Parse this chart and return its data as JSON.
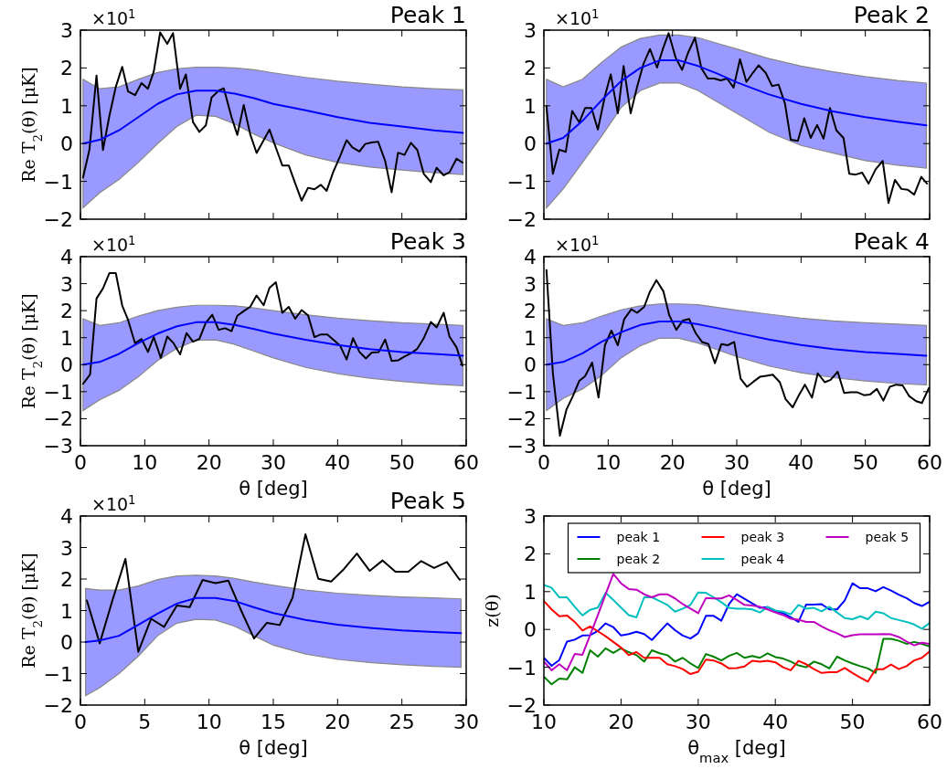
{
  "chart_data": [
    {
      "type": "line",
      "title": "Peak 1",
      "ylabel": "Re T$_{2}$(θ) [μK]",
      "annotations": [
        "×10$^{1}$"
      ],
      "xlim": [
        0,
        60
      ],
      "xticks": [
        0,
        10,
        20,
        30,
        40,
        50,
        60
      ],
      "ylim": [
        -2,
        3
      ],
      "yticks": [
        -2,
        -1,
        0,
        1,
        2,
        3
      ],
      "tick_labels": "y",
      "series": [
        {
          "color": "#000000",
          "x": [
            0.4,
            1.4,
            2.5,
            3.5,
            4.5,
            5.5,
            6.5,
            7.4,
            8.5,
            9.5,
            10.5,
            11.4,
            12.4,
            13.5,
            14.4,
            15.5,
            16.4,
            17.5,
            18.5,
            19.5,
            20.4,
            21.5,
            22.3,
            23.5,
            24.4,
            25.4,
            26.4,
            27.4,
            28.5,
            29.4,
            30.4,
            31.4,
            32.4,
            33.4,
            34.4,
            35.4,
            36.4,
            37.4,
            38.3,
            39.3,
            40.4,
            41.4,
            42.3,
            43.4,
            44.3,
            45.3,
            46.3,
            47.4,
            48.4,
            49.4,
            50.4,
            51.4,
            52.4,
            53.4,
            54.5,
            55.4,
            56.5,
            57.4,
            58.5,
            59.4
          ],
          "values": [
            -0.9,
            -0.16,
            1.8,
            -0.17,
            0.73,
            1.5,
            2.03,
            1.38,
            1.28,
            1.6,
            1.45,
            1.9,
            2.94,
            2.64,
            2.92,
            1.45,
            1.83,
            0.57,
            0.31,
            0.48,
            1.22,
            1.4,
            1.46,
            0.7,
            0.23,
            1.02,
            0.25,
            -0.25,
            0.09,
            0.37,
            -0.11,
            -0.58,
            -0.58,
            -1.05,
            -1.51,
            -1.17,
            -1.21,
            -1.09,
            -1.25,
            -0.76,
            -0.33,
            0.09,
            -0.1,
            -0.21,
            -0.01,
            0.03,
            0.05,
            -0.46,
            -1.29,
            -0.24,
            -0.3,
            0.02,
            -0.17,
            -0.8,
            -1.02,
            -0.64,
            -0.84,
            -0.76,
            -0.4,
            -0.5
          ]
        },
        {
          "color": "#0000ff",
          "x": [
            0.4,
            3,
            6,
            9,
            12,
            15,
            18,
            21,
            24,
            27,
            30,
            35,
            40,
            45,
            50,
            55,
            59.5
          ],
          "values": [
            0,
            0.1,
            0.35,
            0.7,
            1.05,
            1.3,
            1.4,
            1.4,
            1.32,
            1.2,
            1.05,
            0.88,
            0.7,
            0.55,
            0.45,
            0.35,
            0.28
          ],
          "upper": [
            1.7,
            1.45,
            1.5,
            1.7,
            1.88,
            1.98,
            2.02,
            2.02,
            2.0,
            1.95,
            1.87,
            1.75,
            1.65,
            1.57,
            1.5,
            1.45,
            1.42
          ],
          "lower": [
            -1.7,
            -1.3,
            -0.95,
            -0.5,
            0.0,
            0.45,
            0.75,
            0.72,
            0.52,
            0.25,
            0.02,
            -0.3,
            -0.5,
            -0.62,
            -0.7,
            -0.77,
            -0.82
          ]
        }
      ]
    },
    {
      "type": "line",
      "title": "Peak 2",
      "annotations": [
        "×10$^{1}$"
      ],
      "xlim": [
        0,
        60
      ],
      "xticks": [
        0,
        10,
        20,
        30,
        40,
        50,
        60
      ],
      "ylim": [
        -2,
        3
      ],
      "yticks": [
        -2,
        -1,
        0,
        1,
        2,
        3
      ],
      "tick_labels": "y",
      "series": [
        {
          "color": "#000000",
          "x": [
            0.4,
            1.4,
            2.4,
            3.4,
            4.4,
            5.5,
            6.4,
            7.4,
            8.4,
            9.5,
            10.4,
            11.5,
            12.4,
            13.5,
            14.5,
            15.5,
            16.5,
            17.6,
            18.5,
            19.4,
            20.5,
            21.5,
            22.4,
            23.5,
            24.5,
            25.5,
            26.5,
            27.5,
            28.5,
            29.5,
            30.5,
            31.5,
            32.5,
            33.4,
            34.5,
            35.5,
            36.5,
            37.5,
            38.4,
            39.5,
            40.5,
            41.5,
            42.5,
            43.5,
            44.5,
            45.5,
            46.6,
            47.5,
            48.5,
            49.5,
            50.5,
            51.6,
            52.7,
            53.6,
            54.6,
            55.6,
            56.6,
            57.6,
            58.7,
            59.6
          ],
          "values": [
            0.98,
            -0.8,
            -0.16,
            -0.22,
            0.86,
            0.56,
            0.94,
            0.94,
            0.37,
            1.26,
            1.83,
            0.8,
            2.05,
            0.8,
            1.5,
            2.11,
            2.5,
            2.01,
            2.5,
            2.92,
            2.27,
            1.95,
            2.39,
            2.8,
            1.99,
            1.72,
            1.72,
            1.67,
            1.72,
            1.48,
            2.23,
            1.63,
            1.87,
            2.07,
            1.87,
            1.52,
            1.56,
            1.06,
            0.1,
            0.07,
            0.67,
            0.15,
            0.49,
            0.13,
            0.94,
            0.35,
            0.15,
            -0.8,
            -0.82,
            -0.77,
            -1.06,
            -0.68,
            -0.46,
            -1.57,
            -0.96,
            -1.2,
            -1.22,
            -1.35,
            -0.88,
            -1.06
          ]
        },
        {
          "color": "#0000ff",
          "x": [
            0.4,
            3,
            6,
            9,
            12,
            15,
            18,
            21,
            24,
            27,
            30,
            35,
            40,
            45,
            50,
            55,
            59.5
          ],
          "values": [
            0,
            0.15,
            0.6,
            1.15,
            1.65,
            2.0,
            2.2,
            2.2,
            2.05,
            1.85,
            1.62,
            1.3,
            1.05,
            0.85,
            0.7,
            0.58,
            0.48
          ],
          "upper": [
            1.7,
            1.5,
            1.7,
            2.15,
            2.55,
            2.78,
            2.87,
            2.87,
            2.8,
            2.65,
            2.5,
            2.25,
            2.05,
            1.9,
            1.77,
            1.67,
            1.6
          ],
          "lower": [
            -1.7,
            -1.2,
            -0.5,
            0.2,
            0.95,
            1.4,
            1.6,
            1.6,
            1.4,
            1.1,
            0.8,
            0.3,
            -0.05,
            -0.25,
            -0.45,
            -0.57,
            -0.65
          ]
        }
      ]
    },
    {
      "type": "line",
      "title": "Peak 3",
      "xlabel": "θ [deg]",
      "ylabel": "Re T$_{2}$(θ) [μK]",
      "annotations": [
        "×10$^{1}$"
      ],
      "xlim": [
        0,
        60
      ],
      "xticks": [
        0,
        10,
        20,
        30,
        40,
        50,
        60
      ],
      "ylim": [
        -3,
        4
      ],
      "yticks": [
        -3,
        -2,
        -1,
        0,
        1,
        2,
        3,
        4
      ],
      "series": [
        {
          "color": "#000000",
          "x": [
            0.4,
            1.5,
            2.5,
            3.5,
            4.5,
            5.5,
            6.5,
            7.4,
            8.5,
            9.5,
            10.5,
            11.4,
            12.5,
            13.5,
            14.5,
            15.5,
            16.5,
            17.5,
            18.5,
            19.5,
            20.5,
            21.5,
            22.5,
            23.5,
            24.4,
            25.5,
            26.4,
            27.4,
            28.5,
            29.4,
            30.4,
            31.4,
            32.4,
            33.4,
            34.4,
            35.4,
            36.4,
            37.4,
            38.4,
            39.3,
            40.4,
            41.4,
            42.4,
            43.4,
            44.4,
            45.3,
            46.4,
            47.4,
            48.4,
            49.4,
            50.4,
            51.4,
            52.4,
            53.4,
            54.5,
            55.4,
            56.5,
            57.4,
            58.5,
            59.4
          ],
          "values": [
            -0.71,
            -0.37,
            2.45,
            2.82,
            3.39,
            3.39,
            2.19,
            1.66,
            0.79,
            0.95,
            0.47,
            1.02,
            0.25,
            1.04,
            0.79,
            0.38,
            1.17,
            0.85,
            0.95,
            1.55,
            1.85,
            1.29,
            1.35,
            1.24,
            1.81,
            2.0,
            2.14,
            2.56,
            2.2,
            2.84,
            3.05,
            1.92,
            2.14,
            1.7,
            2.02,
            1.83,
            1.02,
            1.12,
            1.12,
            0.93,
            0.7,
            0.19,
            0.98,
            0.47,
            0.23,
            0.45,
            0.47,
            0.93,
            0.14,
            0.16,
            0.3,
            0.42,
            0.59,
            0.98,
            1.58,
            1.38,
            1.92,
            1.04,
            0.64,
            -0.03
          ]
        },
        {
          "color": "#0000ff",
          "x": [
            0.4,
            3,
            6,
            9,
            12,
            15,
            18,
            21,
            24,
            27,
            30,
            35,
            40,
            45,
            50,
            55,
            59.5
          ],
          "values": [
            0,
            0.1,
            0.4,
            0.8,
            1.15,
            1.42,
            1.57,
            1.57,
            1.47,
            1.32,
            1.15,
            0.92,
            0.73,
            0.58,
            0.47,
            0.4,
            0.33
          ],
          "upper": [
            1.7,
            1.45,
            1.55,
            1.8,
            2.0,
            2.13,
            2.2,
            2.2,
            2.18,
            2.1,
            2.0,
            1.85,
            1.72,
            1.63,
            1.55,
            1.5,
            1.45
          ],
          "lower": [
            -1.7,
            -1.3,
            -0.95,
            -0.45,
            0.15,
            0.6,
            0.9,
            0.92,
            0.75,
            0.5,
            0.25,
            -0.1,
            -0.33,
            -0.5,
            -0.62,
            -0.72,
            -0.78
          ]
        }
      ]
    },
    {
      "type": "line",
      "title": "Peak 4",
      "xlabel": "θ [deg]",
      "annotations": [
        "×10$^{1}$"
      ],
      "xlim": [
        0,
        60
      ],
      "xticks": [
        0,
        10,
        20,
        30,
        40,
        50,
        60
      ],
      "ylim": [
        -3,
        4
      ],
      "yticks": [
        -3,
        -2,
        -1,
        0,
        1,
        2,
        3,
        4
      ],
      "series": [
        {
          "color": "#000000",
          "x": [
            0.4,
            1.4,
            2.5,
            3.5,
            4.5,
            5.5,
            6.4,
            7.5,
            8.5,
            9.5,
            10.5,
            11.5,
            12.5,
            13.6,
            14.5,
            15.6,
            16.5,
            17.5,
            18.6,
            19.5,
            20.6,
            21.6,
            22.6,
            23.6,
            24.6,
            25.6,
            26.6,
            27.6,
            28.6,
            29.6,
            30.6,
            31.6,
            32.6,
            33.6,
            34.6,
            35.6,
            36.7,
            37.6,
            38.7,
            39.6,
            40.6,
            41.7,
            42.6,
            43.7,
            44.6,
            45.7,
            46.7,
            47.7,
            48.7,
            49.8,
            50.7,
            51.8,
            52.8,
            53.8,
            54.8,
            55.8,
            56.8,
            57.9,
            58.8,
            59.9
          ],
          "values": [
            3.5,
            -0.32,
            -2.63,
            -1.67,
            -1.17,
            -0.6,
            -0.43,
            0.08,
            -1.22,
            0.72,
            1.26,
            0.72,
            1.69,
            2.05,
            1.92,
            2.14,
            2.71,
            3.13,
            2.71,
            1.83,
            1.29,
            1.63,
            1.69,
            1.17,
            0.84,
            0.76,
            0.05,
            0.76,
            0.72,
            0.84,
            -0.52,
            -0.82,
            -0.63,
            -0.45,
            -0.41,
            -0.37,
            -0.65,
            -1.28,
            -1.58,
            -1.16,
            -0.74,
            -1.22,
            -0.32,
            -0.65,
            -0.56,
            -0.26,
            -1.05,
            -1.02,
            -1.02,
            -1.13,
            -1.11,
            -0.9,
            -1.33,
            -0.82,
            -0.74,
            -0.77,
            -1.16,
            -1.35,
            -1.42,
            -0.86
          ]
        },
        {
          "color": "#0000ff",
          "x": [
            0.4,
            3,
            6,
            9,
            12,
            15,
            18,
            21,
            24,
            27,
            30,
            35,
            40,
            45,
            50,
            55,
            59.5
          ],
          "values": [
            0,
            0.1,
            0.42,
            0.85,
            1.2,
            1.47,
            1.6,
            1.6,
            1.5,
            1.35,
            1.18,
            0.93,
            0.73,
            0.58,
            0.47,
            0.4,
            0.33
          ],
          "upper": [
            1.7,
            1.45,
            1.55,
            1.8,
            2.03,
            2.18,
            2.25,
            2.25,
            2.22,
            2.12,
            2.02,
            1.87,
            1.72,
            1.62,
            1.55,
            1.5,
            1.45
          ],
          "lower": [
            -1.7,
            -1.25,
            -0.9,
            -0.4,
            0.25,
            0.7,
            0.98,
            0.98,
            0.8,
            0.55,
            0.3,
            -0.05,
            -0.3,
            -0.48,
            -0.6,
            -0.7,
            -0.75
          ]
        }
      ]
    },
    {
      "type": "line",
      "title": "Peak 5",
      "xlabel": "θ [deg]",
      "ylabel": "Re T$_{2}$(θ) [μK]",
      "annotations": [
        "×10$^{1}$"
      ],
      "xlim": [
        0,
        30
      ],
      "xticks": [
        0,
        5,
        10,
        15,
        20,
        25,
        30
      ],
      "ylim": [
        -2,
        4
      ],
      "yticks": [
        -2,
        -1,
        0,
        1,
        2,
        3,
        4
      ],
      "series": [
        {
          "color": "#000000",
          "x": [
            0.5,
            1.5,
            2.5,
            3.5,
            4.5,
            5.5,
            6.5,
            7.5,
            8.5,
            9.5,
            10.5,
            11.5,
            12.5,
            13.5,
            14.5,
            15.5,
            16.5,
            17.5,
            18.5,
            19.5,
            20.5,
            21.5,
            22.5,
            23.5,
            24.5,
            25.5,
            26.5,
            27.5,
            28.5,
            29.5
          ],
          "values": [
            1.32,
            -0.04,
            1.34,
            2.64,
            -0.31,
            0.74,
            0.48,
            1.16,
            1.11,
            1.97,
            1.87,
            1.95,
            1.0,
            0.11,
            0.61,
            0.54,
            1.41,
            3.42,
            2.01,
            1.92,
            2.32,
            2.81,
            2.26,
            2.59,
            2.23,
            2.23,
            2.57,
            2.35,
            2.54,
            1.97
          ]
        },
        {
          "color": "#0000ff",
          "x": [
            0.4,
            1.5,
            3,
            4.5,
            6,
            7.5,
            9,
            10.5,
            12,
            13.5,
            15,
            17.5,
            20,
            22.5,
            25,
            27.5,
            29.6
          ],
          "values": [
            0,
            0.05,
            0.2,
            0.55,
            0.9,
            1.22,
            1.4,
            1.4,
            1.3,
            1.1,
            0.92,
            0.7,
            0.55,
            0.45,
            0.37,
            0.32,
            0.28
          ],
          "upper": [
            1.7,
            1.65,
            1.65,
            1.78,
            1.98,
            2.1,
            2.12,
            2.1,
            2.02,
            1.9,
            1.8,
            1.65,
            1.55,
            1.48,
            1.43,
            1.4,
            1.37
          ],
          "lower": [
            -1.7,
            -1.45,
            -1.0,
            -0.45,
            0.2,
            0.6,
            0.72,
            0.7,
            0.5,
            0.2,
            -0.1,
            -0.38,
            -0.55,
            -0.65,
            -0.72,
            -0.77,
            -0.8
          ]
        }
      ]
    },
    {
      "type": "line",
      "xlabel": "θ$_{max}$ [deg]",
      "ylabel": "z(θ)",
      "xlim": [
        10,
        60
      ],
      "xticks": [
        10,
        20,
        30,
        40,
        50,
        60
      ],
      "ylim": [
        -2,
        3
      ],
      "yticks": [
        -2,
        -1,
        0,
        1,
        2,
        3
      ],
      "legend": "top",
      "x": [
        10,
        11,
        12,
        13,
        14,
        15,
        16,
        17,
        18,
        19,
        20,
        21,
        22,
        23,
        24,
        25,
        26,
        27,
        28,
        29,
        30,
        31,
        32,
        33,
        34,
        35,
        36,
        37,
        38,
        39,
        40,
        41,
        42,
        43,
        44,
        45,
        46,
        47,
        48,
        49,
        50,
        51,
        52,
        53,
        54,
        55,
        56,
        57,
        58,
        59,
        60
      ],
      "series": [
        {
          "name": "peak 1",
          "color": "#0000ff",
          "values": [
            -0.75,
            -0.96,
            -0.81,
            -0.32,
            -0.27,
            -0.16,
            -0.15,
            -0.04,
            0.16,
            0.06,
            -0.16,
            -0.12,
            -0.06,
            -0.12,
            -0.28,
            -0.06,
            0.16,
            -0.02,
            -0.16,
            -0.24,
            -0.1,
            0.36,
            0.36,
            0.23,
            0.67,
            0.93,
            0.81,
            0.69,
            0.57,
            0.59,
            0.49,
            0.43,
            0.32,
            0.2,
            0.66,
            0.66,
            0.67,
            0.53,
            0.53,
            0.77,
            1.22,
            1.09,
            1.09,
            1.01,
            1.12,
            1.03,
            0.92,
            0.83,
            0.7,
            0.62,
            0.73
          ]
        },
        {
          "name": "peak 2",
          "color": "#008000",
          "values": [
            -1.25,
            -1.45,
            -1.3,
            -1.32,
            -1.0,
            -1.15,
            -0.55,
            -0.72,
            -0.5,
            -0.62,
            -0.5,
            -0.6,
            -0.68,
            -0.85,
            -0.55,
            -0.63,
            -0.68,
            -0.85,
            -0.75,
            -0.9,
            -1.02,
            -0.65,
            -0.72,
            -0.82,
            -0.7,
            -0.62,
            -0.75,
            -0.7,
            -0.75,
            -0.63,
            -0.73,
            -0.77,
            -0.85,
            -0.95,
            -1.0,
            -0.85,
            -0.92,
            -1.03,
            -0.72,
            -0.82,
            -0.9,
            -0.97,
            -1.03,
            -1.15,
            -0.25,
            -0.25,
            -0.3,
            -0.38,
            -0.33,
            -0.38,
            -0.45
          ]
        },
        {
          "name": "peak 3",
          "color": "#ff0000",
          "values": [
            0.75,
            0.53,
            0.35,
            0.37,
            0.2,
            -0.03,
            0.08,
            -0.05,
            -0.18,
            -0.33,
            -0.48,
            -0.68,
            -0.6,
            -0.75,
            -0.75,
            -0.75,
            -0.92,
            -0.97,
            -1.05,
            -1.18,
            -1.12,
            -0.8,
            -0.82,
            -0.9,
            -1.03,
            -1.02,
            -0.98,
            -0.83,
            -0.85,
            -0.83,
            -0.87,
            -1.0,
            -1.08,
            -0.83,
            -0.92,
            -1.05,
            -1.15,
            -1.13,
            -1.13,
            -1.02,
            -1.15,
            -1.27,
            -1.38,
            -1.05,
            -1.05,
            -0.93,
            -1.05,
            -0.97,
            -0.82,
            -0.75,
            -0.58
          ]
        },
        {
          "name": "peak 4",
          "color": "#00bfbf",
          "values": [
            1.18,
            1.1,
            0.85,
            0.85,
            0.6,
            0.37,
            0.52,
            0.58,
            0.97,
            0.78,
            0.58,
            0.38,
            0.32,
            0.85,
            0.85,
            0.75,
            0.65,
            0.47,
            0.55,
            0.65,
            0.98,
            0.97,
            0.85,
            0.72,
            0.57,
            0.55,
            0.55,
            0.53,
            0.45,
            0.6,
            0.5,
            0.47,
            0.4,
            0.65,
            0.55,
            0.57,
            0.48,
            0.6,
            0.45,
            0.3,
            0.27,
            0.35,
            0.27,
            0.47,
            0.43,
            0.3,
            0.25,
            0.2,
            0.13,
            0.02,
            0.17
          ]
        },
        {
          "name": "peak 5",
          "color": "#bf00bf",
          "values": [
            -0.85,
            -1.08,
            -0.92,
            -1.08,
            -0.65,
            -0.67,
            -0.15,
            0.38,
            0.93,
            1.47,
            1.22,
            1.07,
            1.05,
            0.93,
            0.85,
            0.93,
            0.93,
            0.82,
            0.67,
            0.55,
            0.43,
            0.83,
            0.82,
            0.82,
            0.9,
            0.78,
            0.65,
            0.63,
            0.6,
            0.53,
            0.45,
            0.38,
            0.28,
            0.26,
            0.2,
            0.2,
            0.08,
            -0.02,
            -0.1,
            -0.2,
            -0.15,
            -0.13,
            -0.13,
            -0.13,
            -0.12,
            -0.13,
            -0.2,
            -0.32,
            -0.42,
            -0.35,
            -0.38
          ]
        }
      ]
    }
  ]
}
